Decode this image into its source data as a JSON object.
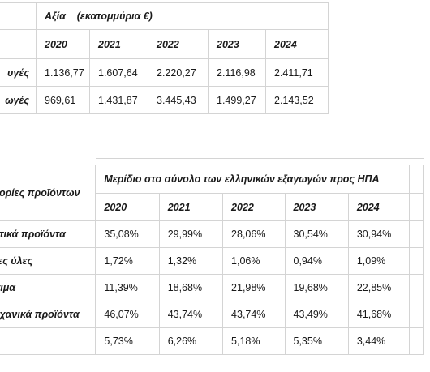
{
  "table1": {
    "header": "Αξία    (εκατομμύρια €)",
    "years": [
      "2020",
      "2021",
      "2022",
      "2023",
      "2024"
    ],
    "rows": [
      {
        "label": "υγές",
        "values": [
          "1.136,77",
          "1.607,64",
          "2.220,27",
          "2.116,98",
          "2.411,71"
        ]
      },
      {
        "label": "ωγές",
        "values": [
          "969,61",
          "1.431,87",
          "3.445,43",
          "1.499,27",
          "2.143,52"
        ]
      }
    ]
  },
  "table2": {
    "category_header": "νορίες προϊόντων",
    "header": "Μερίδιο στο σύνολο των ελληνικών εξαγωγών προς ΗΠΑ",
    "years": [
      "2020",
      "2021",
      "2022",
      "2023",
      "2024"
    ],
    "rows": [
      {
        "label": "οτικά προϊόντα",
        "values": [
          "35,08%",
          "29,99%",
          "28,06%",
          "30,54%",
          "30,94%"
        ]
      },
      {
        "label": "τες ύλες",
        "values": [
          "1,72%",
          "1,32%",
          "1,06%",
          "0,94%",
          "1,09%"
        ]
      },
      {
        "label": "σιμα",
        "values": [
          "11,39%",
          "18,68%",
          "21,98%",
          "19,68%",
          "22,85%"
        ]
      },
      {
        "label": "ηχανικά προϊόντα",
        "values": [
          "46,07%",
          "43,74%",
          "43,74%",
          "43,49%",
          "41,68%"
        ]
      },
      {
        "label": "",
        "values": [
          "5,73%",
          "6,26%",
          "5,18%",
          "5,35%",
          "3,44%"
        ]
      }
    ]
  }
}
